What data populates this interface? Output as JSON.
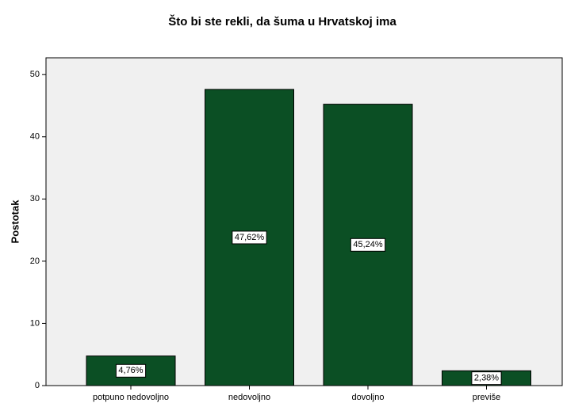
{
  "chart_data": {
    "type": "bar",
    "title": "Što bi ste rekli, da šuma u Hrvatskoj ima",
    "y_label": "Postotak",
    "categories": [
      "potpuno nedovoljno",
      "nedovoljno",
      "dovoljno",
      "previše"
    ],
    "values": [
      4.76,
      47.62,
      45.24,
      2.38
    ],
    "value_labels": [
      "4,76%",
      "47,62%",
      "45,24%",
      "2,38%"
    ],
    "color": "#0b4f24",
    "ylim": [
      0,
      52.7
    ],
    "yticks": [
      0,
      10,
      20,
      30,
      40,
      50
    ]
  }
}
